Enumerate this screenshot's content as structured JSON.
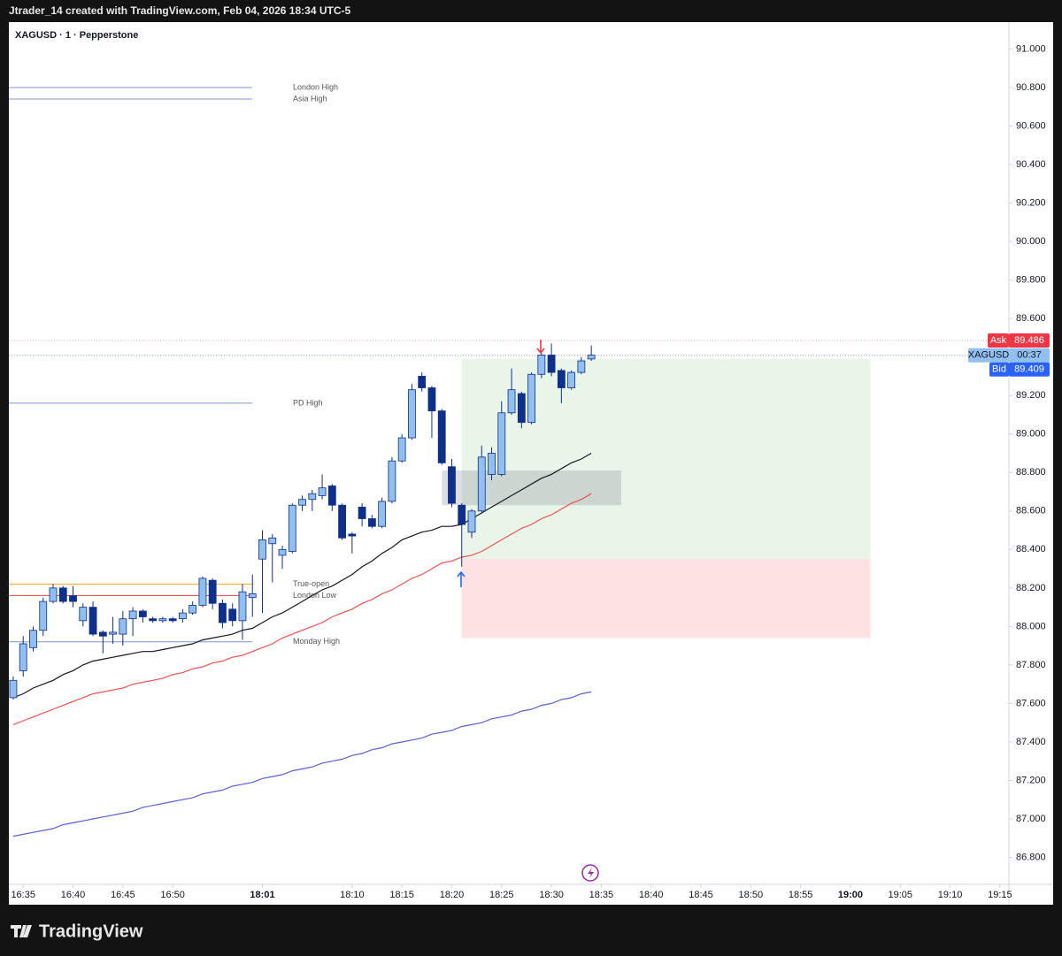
{
  "header": "Jtrader_14 created with TradingView.com, Feb 04, 2026 18:34 UTC-5",
  "brand": "TradingView",
  "chart_data": {
    "type": "candlestick",
    "title": "XAGUSD · 1 · Pepperstone",
    "open": [
      87.63,
      87.77,
      87.89,
      87.98,
      88.13,
      88.2,
      88.16,
      88.03,
      88.1,
      87.97,
      87.96,
      87.96,
      88.04,
      88.08,
      88.04,
      88.03,
      88.04,
      88.04,
      88.07,
      88.11,
      88.24,
      88.12,
      88.09,
      88.03,
      88.15,
      88.35,
      88.43,
      88.37,
      88.39,
      88.63,
      88.66,
      88.68,
      88.73,
      88.63,
      88.48,
      88.62,
      88.56,
      88.52,
      88.65,
      88.86,
      88.98,
      89.3,
      89.24,
      89.12,
      88.83,
      88.63,
      88.49,
      88.6,
      88.79,
      88.79,
      89.11,
      89.21,
      89.06,
      89.31,
      89.41,
      89.33,
      89.24,
      89.32,
      89.39
    ],
    "high": [
      87.74,
      87.95,
      88.0,
      88.15,
      88.22,
      88.21,
      88.21,
      88.12,
      88.13,
      87.98,
      88.05,
      88.08,
      88.1,
      88.09,
      88.05,
      88.05,
      88.05,
      88.09,
      88.13,
      88.26,
      88.25,
      88.14,
      88.12,
      88.22,
      88.27,
      88.5,
      88.48,
      88.42,
      88.64,
      88.68,
      88.71,
      88.79,
      88.74,
      88.64,
      88.49,
      88.64,
      88.58,
      88.67,
      88.88,
      89.0,
      89.26,
      89.32,
      89.25,
      89.13,
      88.87,
      88.64,
      88.61,
      88.94,
      88.93,
      89.17,
      89.34,
      89.22,
      89.32,
      89.42,
      89.47,
      89.34,
      89.33,
      89.4,
      89.46
    ],
    "low": [
      87.62,
      87.74,
      87.87,
      87.95,
      88.12,
      88.12,
      88.1,
      88.0,
      87.95,
      87.86,
      87.91,
      87.9,
      87.95,
      88.02,
      88.02,
      88.02,
      88.02,
      88.02,
      88.06,
      88.1,
      88.09,
      87.99,
      88.0,
      87.93,
      88.05,
      88.07,
      88.23,
      88.3,
      88.38,
      88.6,
      88.6,
      88.66,
      88.6,
      88.45,
      88.38,
      88.52,
      88.51,
      88.51,
      88.64,
      88.85,
      88.97,
      89.22,
      88.98,
      88.84,
      88.62,
      88.31,
      88.46,
      88.59,
      88.76,
      88.78,
      89.1,
      89.03,
      89.05,
      89.29,
      89.3,
      89.16,
      89.23,
      89.31,
      89.38
    ],
    "close": [
      87.72,
      87.91,
      87.98,
      88.13,
      88.2,
      88.13,
      88.13,
      88.1,
      87.96,
      87.95,
      87.97,
      88.04,
      88.08,
      88.05,
      88.03,
      88.04,
      88.03,
      88.07,
      88.11,
      88.25,
      88.12,
      88.02,
      88.03,
      88.18,
      88.17,
      88.45,
      88.46,
      88.4,
      88.63,
      88.66,
      88.69,
      88.72,
      88.63,
      88.46,
      88.47,
      88.56,
      88.52,
      88.65,
      88.86,
      88.98,
      89.23,
      89.24,
      89.12,
      88.85,
      88.64,
      88.53,
      88.6,
      88.88,
      88.9,
      89.11,
      89.23,
      89.06,
      89.31,
      89.41,
      89.32,
      89.24,
      89.32,
      89.38,
      89.41
    ],
    "up_color": "#90bff0",
    "down_color": "#0e2f8c",
    "wick_color": "#0e2f8c",
    "series": [
      {
        "color": "#131722",
        "values": [
          87.63,
          87.65,
          87.68,
          87.7,
          87.72,
          87.75,
          87.77,
          87.8,
          87.82,
          87.83,
          87.84,
          87.85,
          87.86,
          87.87,
          87.87,
          87.88,
          87.89,
          87.9,
          87.91,
          87.93,
          87.94,
          87.95,
          87.96,
          87.98,
          87.99,
          88.02,
          88.05,
          88.07,
          88.1,
          88.13,
          88.16,
          88.19,
          88.21,
          88.24,
          88.27,
          88.31,
          88.34,
          88.38,
          88.41,
          88.45,
          88.47,
          88.49,
          88.5,
          88.52,
          88.52,
          88.53,
          88.56,
          88.59,
          88.62,
          88.65,
          88.68,
          88.71,
          88.74,
          88.77,
          88.79,
          88.82,
          88.85,
          88.87,
          88.9
        ]
      },
      {
        "color": "#f0504f",
        "values": [
          87.49,
          87.51,
          87.53,
          87.55,
          87.57,
          87.59,
          87.61,
          87.63,
          87.65,
          87.66,
          87.67,
          87.68,
          87.7,
          87.71,
          87.72,
          87.73,
          87.75,
          87.76,
          87.78,
          87.79,
          87.81,
          87.82,
          87.84,
          87.85,
          87.87,
          87.89,
          87.91,
          87.94,
          87.96,
          87.98,
          88.0,
          88.02,
          88.05,
          88.07,
          88.09,
          88.12,
          88.14,
          88.17,
          88.19,
          88.22,
          88.25,
          88.27,
          88.3,
          88.33,
          88.34,
          88.36,
          88.37,
          88.39,
          88.42,
          88.45,
          88.48,
          88.51,
          88.53,
          88.56,
          88.58,
          88.61,
          88.64,
          88.66,
          88.69
        ]
      },
      {
        "color": "#5b5fd6",
        "values": [
          86.91,
          86.92,
          86.93,
          86.94,
          86.95,
          86.97,
          86.98,
          86.99,
          87.0,
          87.01,
          87.02,
          87.03,
          87.04,
          87.06,
          87.07,
          87.08,
          87.09,
          87.1,
          87.11,
          87.13,
          87.14,
          87.15,
          87.17,
          87.18,
          87.19,
          87.21,
          87.22,
          87.23,
          87.25,
          87.26,
          87.27,
          87.29,
          87.3,
          87.31,
          87.33,
          87.34,
          87.36,
          87.37,
          87.39,
          87.4,
          87.41,
          87.42,
          87.44,
          87.45,
          87.46,
          87.48,
          87.49,
          87.5,
          87.52,
          87.53,
          87.54,
          87.56,
          87.57,
          87.59,
          87.6,
          87.62,
          87.63,
          87.65,
          87.66
        ]
      }
    ],
    "levels": [
      {
        "name": "London High",
        "value": 90.8,
        "color": "#7b93d8"
      },
      {
        "name": "Asia High",
        "value": 90.74,
        "color": "#7b93d8"
      },
      {
        "name": "PD High",
        "value": 89.16,
        "color": "#7b93d8"
      },
      {
        "name": "True-open",
        "value": 88.22,
        "color": "#f5a623"
      },
      {
        "name": "London Low",
        "value": 88.16,
        "color": "#f0504f"
      },
      {
        "name": "Monday High",
        "value": 87.92,
        "color": "#7b93d8"
      }
    ],
    "ask_label": "Ask",
    "ask": 89.486,
    "symbol": "XAGUSD",
    "countdown": "00:37",
    "bid_label": "Bid",
    "bid": 89.409,
    "position": {
      "target": 89.39,
      "entry": 88.35,
      "stop": 87.94,
      "start": 45,
      "end": 86
    },
    "zone": {
      "top": 88.81,
      "bottom": 88.63,
      "start": 43,
      "end": 61
    },
    "ylim": [
      86.66,
      91.14
    ],
    "yticks": [
      {
        "value": 86.8,
        "label": "86.800"
      },
      {
        "value": 87,
        "label": "87.000"
      },
      {
        "value": 87.2,
        "label": "87.200"
      },
      {
        "value": 87.4,
        "label": "87.400"
      },
      {
        "value": 87.6,
        "label": "87.600"
      },
      {
        "value": 87.8,
        "label": "87.800"
      },
      {
        "value": 88,
        "label": "88.000"
      },
      {
        "value": 88.2,
        "label": "88.200"
      },
      {
        "value": 88.4,
        "label": "88.400"
      },
      {
        "value": 88.6,
        "label": "88.600"
      },
      {
        "value": 88.8,
        "label": "88.800"
      },
      {
        "value": 89,
        "label": "89.000"
      },
      {
        "value": 89.2,
        "label": "89.200"
      },
      {
        "value": 89.4,
        "label": "89.400"
      },
      {
        "value": 89.6,
        "label": "89.600"
      },
      {
        "value": 89.8,
        "label": "89.800"
      },
      {
        "value": 90,
        "label": "90.000"
      },
      {
        "value": 90.2,
        "label": "90.200"
      },
      {
        "value": 90.4,
        "label": "90.400"
      },
      {
        "value": 90.6,
        "label": "90.600"
      },
      {
        "value": 90.8,
        "label": "90.800"
      },
      {
        "value": 91,
        "label": "91.000"
      }
    ],
    "xlim": [
      -0.44,
      99.9
    ],
    "xticks": [
      {
        "value": 1,
        "label": "16:35"
      },
      {
        "value": 6,
        "label": "16:40"
      },
      {
        "value": 11,
        "label": "16:45"
      },
      {
        "value": 16,
        "label": "16:50"
      },
      {
        "value": 25,
        "label": "18:01",
        "bold": true
      },
      {
        "value": 34,
        "label": "18:10"
      },
      {
        "value": 39,
        "label": "18:15"
      },
      {
        "value": 44,
        "label": "18:20"
      },
      {
        "value": 49,
        "label": "18:25"
      },
      {
        "value": 54,
        "label": "18:30"
      },
      {
        "value": 59,
        "label": "18:35"
      },
      {
        "value": 64,
        "label": "18:40"
      },
      {
        "value": 69,
        "label": "18:45"
      },
      {
        "value": 74,
        "label": "18:50"
      },
      {
        "value": 79,
        "label": "18:55"
      },
      {
        "value": 84,
        "label": "19:00",
        "bold": true
      },
      {
        "value": 89,
        "label": "19:05"
      },
      {
        "value": 94,
        "label": "19:10"
      },
      {
        "value": 99,
        "label": "19:15"
      }
    ]
  }
}
